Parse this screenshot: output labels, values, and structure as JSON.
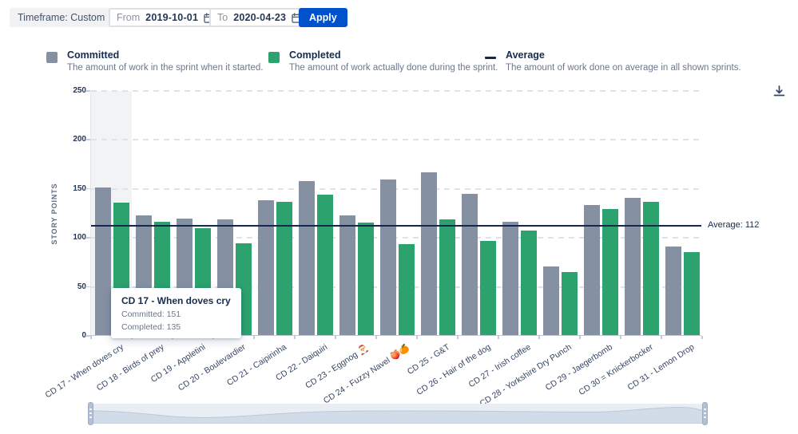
{
  "toolbar": {
    "timeframe_label": "Timeframe: Custom",
    "from_label": "From",
    "from_value": "2019-10-01",
    "to_label": "To",
    "to_value": "2020-04-23",
    "apply_label": "Apply"
  },
  "legend": {
    "committed": {
      "label": "Committed",
      "description": "The amount of work in the sprint when it started.",
      "swatch_color": "#8591A3"
    },
    "completed": {
      "label": "Completed",
      "description": "The amount of work actually done during the sprint.",
      "swatch_color": "#2CA26F"
    },
    "average": {
      "label": "Average",
      "description": "The amount of work done on average in all shown sprints.",
      "swatch_color": "#15284B"
    }
  },
  "chart_data": {
    "type": "bar",
    "title": "",
    "xlabel": "",
    "ylabel": "STORY POINTS",
    "ylim": [
      0,
      250
    ],
    "yticks": [
      0,
      50,
      100,
      150,
      200,
      250
    ],
    "grid": "dashed",
    "legend_position": "top",
    "categories": [
      "CD 17 - When doves cry",
      "CD 18 - Birds of prey",
      "CD 19 - Appletini",
      "CD 20 - Boulevardier",
      "CD 21 - Caipirinha",
      "CD 22 - Daiquiri",
      "CD 23 - Eggnog 🎅",
      "CD 24 - Fuzzy Navel 🍑🍊",
      "CD 25 - G&T",
      "CD 26 - Hair of the dog",
      "CD 27 - Irish coffee",
      "CD 28 - Yorkshire Dry Punch",
      "CD 29 - Jaegerbomb",
      "CD 30 = Knickerbocker",
      "CD 31 - Lemon Drop"
    ],
    "series": [
      {
        "name": "Committed",
        "color": "#8591A3",
        "values": [
          151,
          122,
          119,
          118,
          138,
          157,
          122,
          159,
          166,
          144,
          116,
          70,
          133,
          140,
          90
        ]
      },
      {
        "name": "Completed",
        "color": "#2CA26F",
        "values": [
          135,
          116,
          109,
          94,
          136,
          143,
          115,
          93,
          118,
          96,
          107,
          64,
          129,
          136,
          85
        ]
      }
    ],
    "average": {
      "value": 112,
      "label": "Average: 112"
    },
    "highlighted_category_index": 0
  },
  "tooltip": {
    "title": "CD 17 - When doves cry",
    "lines": [
      "Committed: 151",
      "Completed: 135"
    ]
  },
  "colors": {
    "accent_blue": "#0052CC",
    "bar_committed": "#8591A3",
    "bar_completed": "#2CA26F",
    "average_line": "#15284B",
    "highlight_band": "#F2F3F5"
  }
}
